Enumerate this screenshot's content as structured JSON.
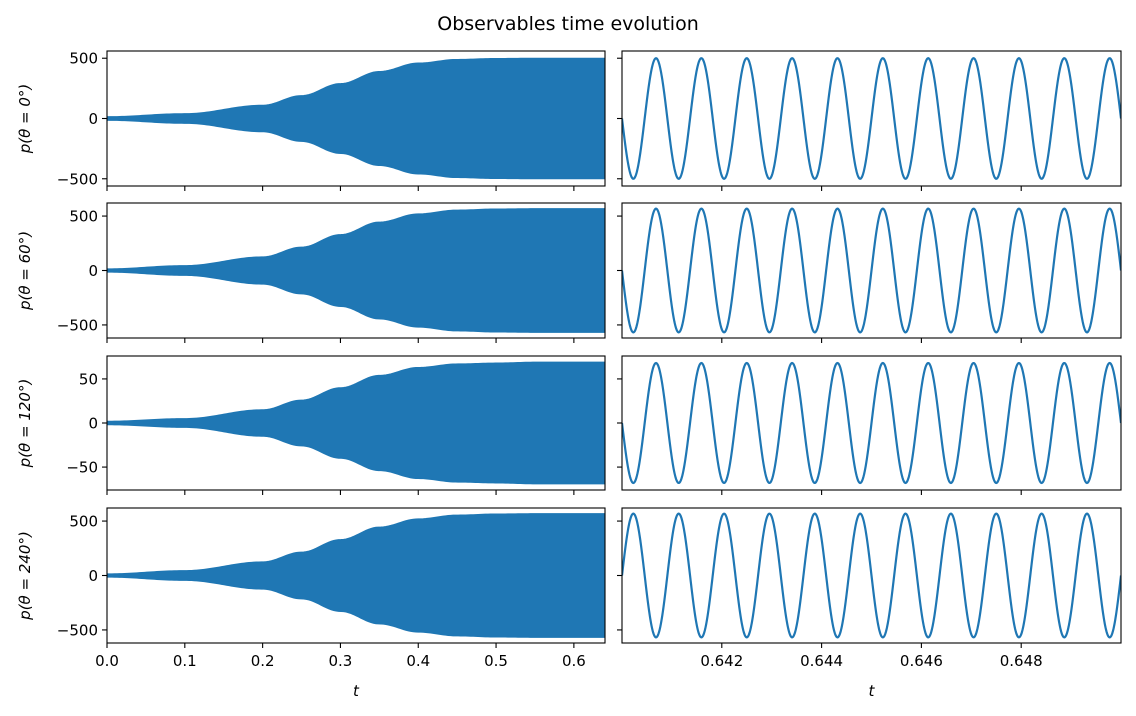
{
  "title": "Observables time evolution",
  "series_color": "#1f77b4",
  "chart_data": [
    {
      "type": "area",
      "panel": "row1-left",
      "ylabel": "p(θ = 0°)",
      "xlim": [
        0,
        0.64
      ],
      "ylim": [
        -560,
        560
      ],
      "xticks": [],
      "yticks": [
        -500,
        0,
        500
      ],
      "envelope": {
        "t": [
          0.0,
          0.1,
          0.2,
          0.25,
          0.3,
          0.35,
          0.4,
          0.45,
          0.5,
          0.55,
          0.6,
          0.64
        ],
        "amplitude": [
          15,
          40,
          110,
          190,
          290,
          390,
          460,
          490,
          498,
          500,
          500,
          500
        ]
      }
    },
    {
      "type": "line",
      "panel": "row1-right",
      "xlim": [
        0.64,
        0.65
      ],
      "ylim": [
        -560,
        560
      ],
      "xticks": [],
      "yticks": [],
      "wave": {
        "amplitude": 500,
        "cycles": 11,
        "start_phase_deg": 0
      }
    },
    {
      "type": "area",
      "panel": "row2-left",
      "ylabel": "p(θ = 60°)",
      "xlim": [
        0,
        0.64
      ],
      "ylim": [
        -620,
        620
      ],
      "xticks": [],
      "yticks": [
        -500,
        0,
        500
      ],
      "envelope": {
        "t": [
          0.0,
          0.1,
          0.2,
          0.25,
          0.3,
          0.35,
          0.4,
          0.45,
          0.5,
          0.55,
          0.6,
          0.64
        ],
        "amplitude": [
          15,
          45,
          125,
          215,
          330,
          445,
          520,
          555,
          565,
          568,
          568,
          568
        ]
      }
    },
    {
      "type": "line",
      "panel": "row2-right",
      "xlim": [
        0.64,
        0.65
      ],
      "ylim": [
        -620,
        620
      ],
      "xticks": [],
      "yticks": [],
      "wave": {
        "amplitude": 568,
        "cycles": 11,
        "start_phase_deg": 0
      }
    },
    {
      "type": "area",
      "panel": "row3-left",
      "ylabel": "p(θ = 120°)",
      "xlim": [
        0,
        0.64
      ],
      "ylim": [
        -76,
        76
      ],
      "xticks": [],
      "yticks": [
        -50,
        0,
        50
      ],
      "envelope": {
        "t": [
          0.0,
          0.1,
          0.2,
          0.25,
          0.3,
          0.35,
          0.4,
          0.45,
          0.5,
          0.55,
          0.6,
          0.64
        ],
        "amplitude": [
          2,
          5,
          15,
          26,
          40,
          54,
          63,
          67,
          68,
          69,
          69,
          69
        ]
      }
    },
    {
      "type": "line",
      "panel": "row3-right",
      "xlim": [
        0.64,
        0.65
      ],
      "ylim": [
        -76,
        76
      ],
      "xticks": [],
      "yticks": [],
      "wave": {
        "amplitude": 68,
        "cycles": 11,
        "start_phase_deg": 0
      }
    },
    {
      "type": "area",
      "panel": "row4-left",
      "ylabel": "p(θ = 240°)",
      "xlabel": "t",
      "xlim": [
        0,
        0.64
      ],
      "ylim": [
        -620,
        620
      ],
      "xticks": [
        0.0,
        0.1,
        0.2,
        0.3,
        0.4,
        0.5,
        0.6
      ],
      "xticklabels": [
        "0.0",
        "0.1",
        "0.2",
        "0.3",
        "0.4",
        "0.5",
        "0.6"
      ],
      "yticks": [
        -500,
        0,
        500
      ],
      "envelope": {
        "t": [
          0.0,
          0.1,
          0.2,
          0.25,
          0.3,
          0.35,
          0.4,
          0.45,
          0.5,
          0.55,
          0.6,
          0.64
        ],
        "amplitude": [
          15,
          45,
          125,
          215,
          330,
          445,
          520,
          555,
          565,
          568,
          568,
          568
        ]
      }
    },
    {
      "type": "line",
      "panel": "row4-right",
      "xlabel": "t",
      "xlim": [
        0.64,
        0.65
      ],
      "ylim": [
        -620,
        620
      ],
      "xticks": [
        0.642,
        0.644,
        0.646,
        0.648
      ],
      "xticklabels": [
        "0.642",
        "0.644",
        "0.646",
        "0.648"
      ],
      "yticks": [],
      "wave": {
        "amplitude": 568,
        "cycles": 11,
        "start_phase_deg": 180
      }
    }
  ]
}
